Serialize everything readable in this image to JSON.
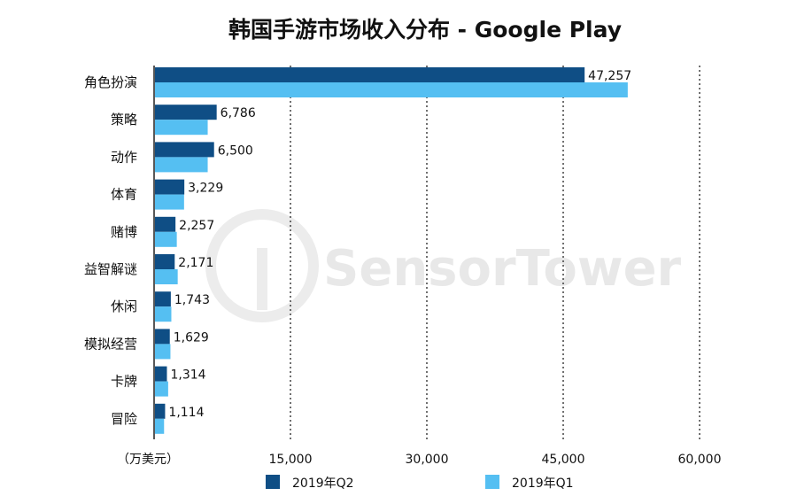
{
  "watermark": "SensorTower",
  "chart_data": {
    "type": "bar",
    "orientation": "horizontal",
    "title": "韩国手游市场收入分布 - Google Play",
    "unit_label": "（万美元）",
    "categories": [
      "角色扮演",
      "策略",
      "动作",
      "体育",
      "赌博",
      "益智解谜",
      "休闲",
      "模拟经营",
      "卡牌",
      "冒险"
    ],
    "series": [
      {
        "name": "2019年Q2",
        "color": "#0f4e85",
        "values": [
          47257,
          6786,
          6500,
          3229,
          2257,
          2171,
          1743,
          1629,
          1314,
          1114
        ],
        "labels_shown": true
      },
      {
        "name": "2019年Q1",
        "color": "#55bff2",
        "values": [
          52000,
          5800,
          5800,
          3200,
          2400,
          2500,
          1800,
          1700,
          1450,
          1000
        ],
        "labels_shown": false
      }
    ],
    "value_labels": [
      "47,257",
      "6,786",
      "6,500",
      "3,229",
      "2,257",
      "2,171",
      "1,743",
      "1,629",
      "1,314",
      "1,114"
    ],
    "xlim": [
      0,
      60000
    ],
    "xticks": [
      15000,
      30000,
      45000,
      60000
    ],
    "xtick_labels": [
      "15,000",
      "30,000",
      "45,000",
      "60,000"
    ],
    "grid": "vertical dotted",
    "legend_position": "bottom"
  }
}
